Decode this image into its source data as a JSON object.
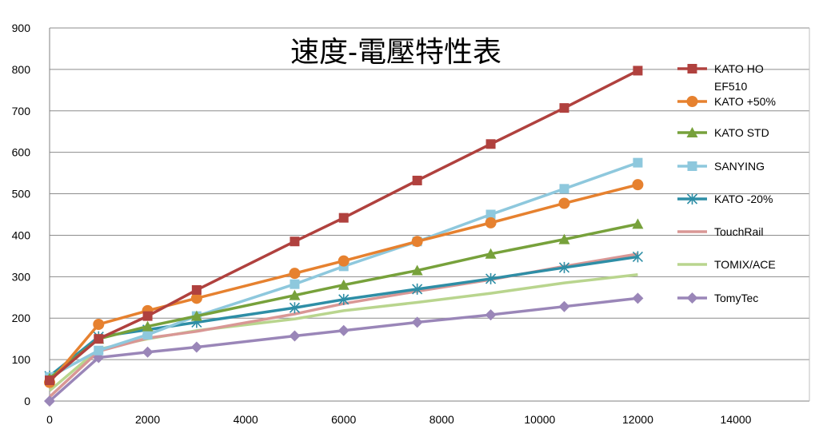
{
  "chart_data": {
    "type": "line",
    "title": "速度-電壓特性表",
    "xlabel": "",
    "ylabel": "",
    "xlim": [
      0,
      14000
    ],
    "ylim": [
      0,
      900
    ],
    "x_ticks": [
      "0",
      "2000",
      "4000",
      "6000",
      "8000",
      "10000",
      "12000",
      "14000"
    ],
    "y_ticks": [
      "0",
      "100",
      "200",
      "300",
      "400",
      "500",
      "600",
      "700",
      "800",
      "900"
    ],
    "grid": "horizontal",
    "legend_position": "right",
    "series": [
      {
        "name": "KATO HO EF510",
        "legend_lines": [
          "KATO HO",
          "EF510"
        ],
        "color": "#B0413E",
        "marker": "square",
        "points": [
          [
            0,
            50
          ],
          [
            1000,
            150
          ],
          [
            2000,
            205
          ],
          [
            3000,
            268
          ],
          [
            5000,
            385
          ],
          [
            6000,
            442
          ],
          [
            7500,
            532
          ],
          [
            9000,
            620
          ],
          [
            10500,
            707
          ],
          [
            12000,
            797
          ]
        ]
      },
      {
        "name": "KATO +50%",
        "legend_lines": [
          "KATO +50%"
        ],
        "color": "#E6812F",
        "marker": "circle",
        "points": [
          [
            0,
            45
          ],
          [
            1000,
            185
          ],
          [
            2000,
            218
          ],
          [
            3000,
            248
          ],
          [
            5000,
            308
          ],
          [
            6000,
            338
          ],
          [
            7500,
            385
          ],
          [
            9000,
            430
          ],
          [
            10500,
            477
          ],
          [
            12000,
            522
          ]
        ]
      },
      {
        "name": "KATO STD",
        "legend_lines": [
          "KATO STD"
        ],
        "color": "#77A13B",
        "marker": "triangle",
        "points": [
          [
            0,
            55
          ],
          [
            1000,
            150
          ],
          [
            2000,
            180
          ],
          [
            3000,
            205
          ],
          [
            5000,
            255
          ],
          [
            6000,
            280
          ],
          [
            7500,
            315
          ],
          [
            9000,
            355
          ],
          [
            10500,
            390
          ],
          [
            12000,
            427
          ]
        ]
      },
      {
        "name": "SANYING",
        "legend_lines": [
          "SANYING"
        ],
        "color": "#8EC8DD",
        "marker": "square",
        "points": [
          [
            0,
            58
          ],
          [
            1000,
            122
          ],
          [
            2000,
            160
          ],
          [
            3000,
            205
          ],
          [
            5000,
            282
          ],
          [
            6000,
            325
          ],
          [
            7500,
            385
          ],
          [
            9000,
            450
          ],
          [
            10500,
            512
          ],
          [
            12000,
            575
          ]
        ]
      },
      {
        "name": "KATO -20%",
        "legend_lines": [
          "KATO -20%"
        ],
        "color": "#2E8EA6",
        "marker": "asterisk",
        "points": [
          [
            0,
            60
          ],
          [
            1000,
            155
          ],
          [
            2000,
            172
          ],
          [
            3000,
            190
          ],
          [
            5000,
            225
          ],
          [
            6000,
            245
          ],
          [
            7500,
            270
          ],
          [
            9000,
            295
          ],
          [
            10500,
            322
          ],
          [
            12000,
            348
          ]
        ]
      },
      {
        "name": "TouchRail",
        "legend_lines": [
          "TouchRail"
        ],
        "color": "#D99795",
        "marker": "none",
        "points": [
          [
            0,
            10
          ],
          [
            1000,
            120
          ],
          [
            2000,
            152
          ],
          [
            3000,
            168
          ],
          [
            5000,
            210
          ],
          [
            6000,
            235
          ],
          [
            7500,
            265
          ],
          [
            9000,
            293
          ],
          [
            10500,
            325
          ],
          [
            12000,
            355
          ]
        ]
      },
      {
        "name": "TOMIX/ACE",
        "legend_lines": [
          "TOMIX/ACE"
        ],
        "color": "#B9D58E",
        "marker": "none",
        "points": [
          [
            0,
            25
          ],
          [
            1000,
            125
          ],
          [
            2000,
            150
          ],
          [
            3000,
            170
          ],
          [
            5000,
            198
          ],
          [
            6000,
            218
          ],
          [
            7500,
            238
          ],
          [
            9000,
            260
          ],
          [
            10500,
            285
          ],
          [
            12000,
            305
          ]
        ]
      },
      {
        "name": "TomyTec",
        "legend_lines": [
          "TomyTec"
        ],
        "color": "#9A86B8",
        "marker": "diamond",
        "points": [
          [
            0,
            0
          ],
          [
            1000,
            105
          ],
          [
            2000,
            118
          ],
          [
            3000,
            130
          ],
          [
            5000,
            157
          ],
          [
            6000,
            170
          ],
          [
            7500,
            190
          ],
          [
            9000,
            208
          ],
          [
            10500,
            228
          ],
          [
            12000,
            248
          ]
        ]
      }
    ]
  }
}
